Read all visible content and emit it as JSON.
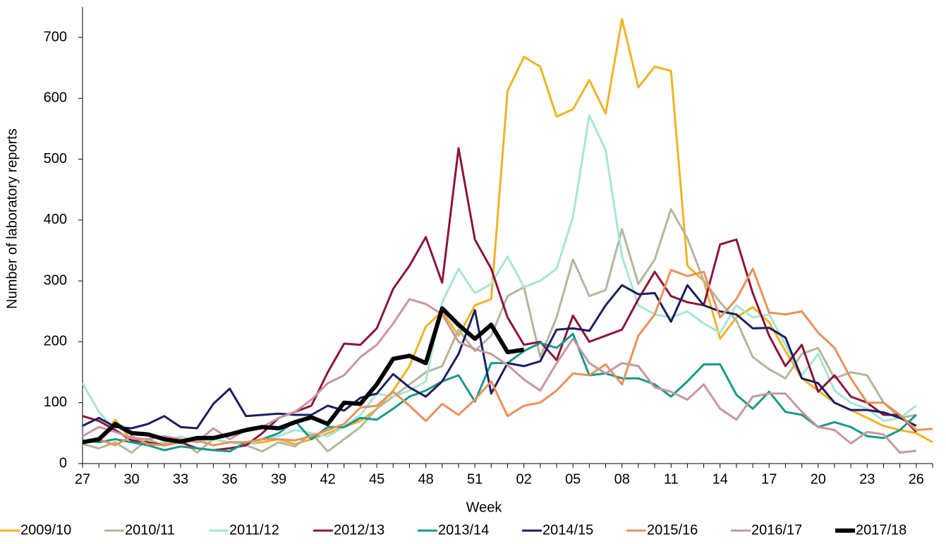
{
  "chart_data": {
    "type": "line",
    "xlabel": "Week",
    "ylabel": "Number of laboratory reports",
    "categories": [
      "27",
      null,
      null,
      "30",
      null,
      null,
      "33",
      null,
      null,
      "36",
      null,
      null,
      "39",
      null,
      null,
      "42",
      null,
      null,
      "45",
      null,
      null,
      "48",
      null,
      null,
      "51",
      null,
      null,
      "02",
      null,
      null,
      "05",
      null,
      null,
      "08",
      null,
      null,
      "11",
      null,
      null,
      "14",
      null,
      null,
      "17",
      null,
      null,
      "20",
      null,
      null,
      "23",
      null,
      null,
      "26",
      null
    ],
    "ylim": [
      0,
      750
    ],
    "yticks": [
      0,
      100,
      200,
      300,
      400,
      500,
      600,
      700
    ],
    "legend": "bottom",
    "series": [
      {
        "name": "2009/10",
        "color": "#f0b323",
        "line_width": 3,
        "values": [
          35,
          38,
          72,
          38,
          30,
          32,
          35,
          38,
          40,
          35,
          32,
          35,
          40,
          32,
          40,
          50,
          60,
          70,
          90,
          120,
          160,
          225,
          250,
          210,
          260,
          270,
          612,
          668,
          652,
          570,
          582,
          630,
          575,
          730,
          618,
          652,
          645,
          325,
          300,
          205,
          240,
          257,
          232,
          185,
          140,
          120,
          100,
          88,
          75,
          62,
          55,
          50,
          35
        ]
      },
      {
        "name": "2010/11",
        "color": "#b6b59c",
        "line_width": 3,
        "values": [
          32,
          25,
          35,
          18,
          40,
          30,
          40,
          18,
          40,
          35,
          30,
          20,
          35,
          28,
          50,
          20,
          40,
          60,
          90,
          110,
          130,
          150,
          160,
          220,
          185,
          210,
          275,
          290,
          175,
          240,
          335,
          275,
          285,
          385,
          295,
          335,
          418,
          370,
          300,
          265,
          235,
          175,
          155,
          140,
          180,
          190,
          140,
          150,
          145,
          100,
          75,
          80,
          null
        ]
      },
      {
        "name": "2011/12",
        "color": "#a6e5d6",
        "line_width": 3,
        "values": [
          132,
          85,
          55,
          40,
          30,
          35,
          45,
          35,
          40,
          35,
          30,
          40,
          45,
          55,
          50,
          45,
          60,
          80,
          115,
          110,
          120,
          135,
          265,
          320,
          280,
          295,
          340,
          290,
          300,
          320,
          405,
          572,
          515,
          340,
          260,
          245,
          240,
          250,
          230,
          215,
          260,
          240,
          245,
          195,
          145,
          180,
          120,
          100,
          90,
          70,
          75,
          95,
          null
        ]
      },
      {
        "name": "2012/13",
        "color": "#8c1538",
        "line_width": 3,
        "values": [
          78,
          70,
          55,
          38,
          35,
          30,
          35,
          25,
          22,
          25,
          30,
          50,
          75,
          85,
          95,
          150,
          197,
          195,
          222,
          287,
          325,
          372,
          297,
          518,
          368,
          320,
          240,
          195,
          200,
          170,
          243,
          200,
          210,
          220,
          270,
          315,
          275,
          265,
          260,
          360,
          368,
          280,
          210,
          160,
          195,
          118,
          145,
          110,
          100,
          80,
          80,
          52,
          null
        ]
      },
      {
        "name": "2013/14",
        "color": "#17998a",
        "line_width": 3,
        "values": [
          38,
          35,
          40,
          35,
          30,
          22,
          28,
          25,
          22,
          20,
          35,
          40,
          50,
          70,
          40,
          60,
          60,
          75,
          72,
          90,
          110,
          120,
          135,
          145,
          102,
          165,
          165,
          185,
          198,
          190,
          213,
          145,
          148,
          140,
          140,
          130,
          110,
          135,
          163,
          163,
          113,
          90,
          118,
          85,
          80,
          60,
          68,
          60,
          45,
          42,
          55,
          80,
          null
        ]
      },
      {
        "name": "2014/15",
        "color": "#1b1e5e",
        "line_width": 3,
        "values": [
          62,
          75,
          60,
          58,
          65,
          78,
          60,
          58,
          98,
          123,
          78,
          80,
          82,
          80,
          80,
          95,
          87,
          108,
          115,
          147,
          125,
          110,
          135,
          180,
          252,
          115,
          165,
          160,
          168,
          220,
          222,
          218,
          260,
          293,
          278,
          280,
          233,
          293,
          260,
          250,
          245,
          222,
          223,
          207,
          140,
          132,
          100,
          88,
          88,
          84,
          75,
          62,
          null
        ]
      },
      {
        "name": "2015/16",
        "color": "#e8915a",
        "line_width": 3,
        "values": [
          35,
          40,
          30,
          45,
          32,
          30,
          35,
          38,
          30,
          35,
          35,
          40,
          40,
          38,
          45,
          55,
          65,
          92,
          95,
          118,
          95,
          70,
          98,
          80,
          105,
          135,
          78,
          95,
          100,
          120,
          148,
          145,
          163,
          130,
          210,
          245,
          318,
          308,
          315,
          240,
          270,
          320,
          248,
          245,
          250,
          215,
          190,
          140,
          100,
          100,
          80,
          55,
          57
        ]
      },
      {
        "name": "2016/17",
        "color": "#c8969f",
        "line_width": 3,
        "values": [
          45,
          60,
          52,
          42,
          40,
          45,
          40,
          35,
          58,
          40,
          55,
          60,
          75,
          85,
          105,
          132,
          145,
          175,
          195,
          230,
          270,
          262,
          245,
          200,
          188,
          180,
          162,
          138,
          120,
          165,
          205,
          165,
          148,
          165,
          160,
          125,
          118,
          105,
          130,
          90,
          72,
          110,
          115,
          115,
          85,
          60,
          55,
          33,
          52,
          48,
          18,
          21,
          null
        ]
      },
      {
        "name": "2017/18",
        "color": "#000000",
        "line_width": 6,
        "values": [
          35,
          40,
          65,
          50,
          48,
          40,
          36,
          42,
          42,
          48,
          55,
          60,
          58,
          68,
          76,
          65,
          100,
          98,
          130,
          172,
          177,
          165,
          255,
          228,
          205,
          228,
          183,
          187,
          null,
          null,
          null,
          null,
          null,
          null,
          null,
          null,
          null,
          null,
          null,
          null,
          null,
          null,
          null,
          null,
          null,
          null,
          null,
          null,
          null,
          null,
          null,
          null,
          null
        ]
      }
    ]
  }
}
